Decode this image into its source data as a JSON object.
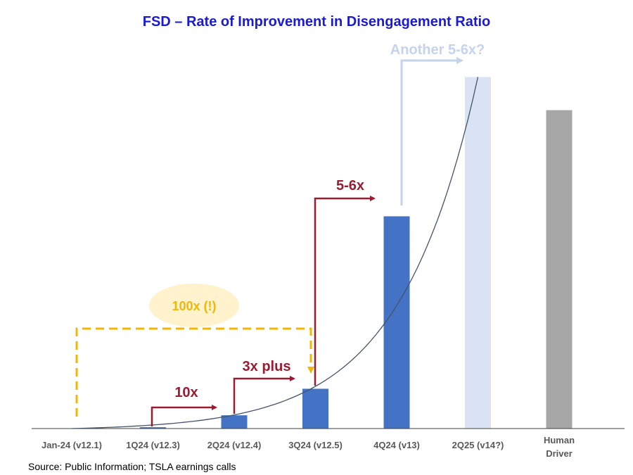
{
  "chart_data": {
    "type": "bar",
    "title": "FSD – Rate of Improvement in Disengagement Ratio",
    "categories": [
      "Jan-24 (v12.1)",
      "1Q24 (v12.3)",
      "2Q24 (v12.4)",
      "3Q24 (v12.5)",
      "4Q24 (v13)",
      "2Q25 (v14?)",
      "Human Driver"
    ],
    "values": [
      0.1,
      1,
      10,
      30,
      160,
      265,
      240
    ],
    "bar_colors": [
      "#4472c4",
      "#4472c4",
      "#4472c4",
      "#4472c4",
      "#4472c4",
      "#dae3f3",
      "#a6a6a6"
    ],
    "ylim": [
      0,
      270
    ],
    "trend_line": true,
    "annotations": {
      "step_10x": "10x",
      "step_3x": "3x plus",
      "step_5_6x": "5-6x",
      "step_another": "Another 5-6x?",
      "bubble_100x": "100x (!)"
    },
    "colors": {
      "bar": "#4472c4",
      "projected_bar": "#dae3f3",
      "human_bar": "#a6a6a6",
      "arrow_red": "#9b1b30",
      "arrow_light": "#c5d3ec",
      "bracket_yellow": "#f2b705",
      "bubble_fill": "#fff2cc",
      "title": "#1a1ad6"
    }
  },
  "source": "Source: Public Information; TSLA earnings calls"
}
